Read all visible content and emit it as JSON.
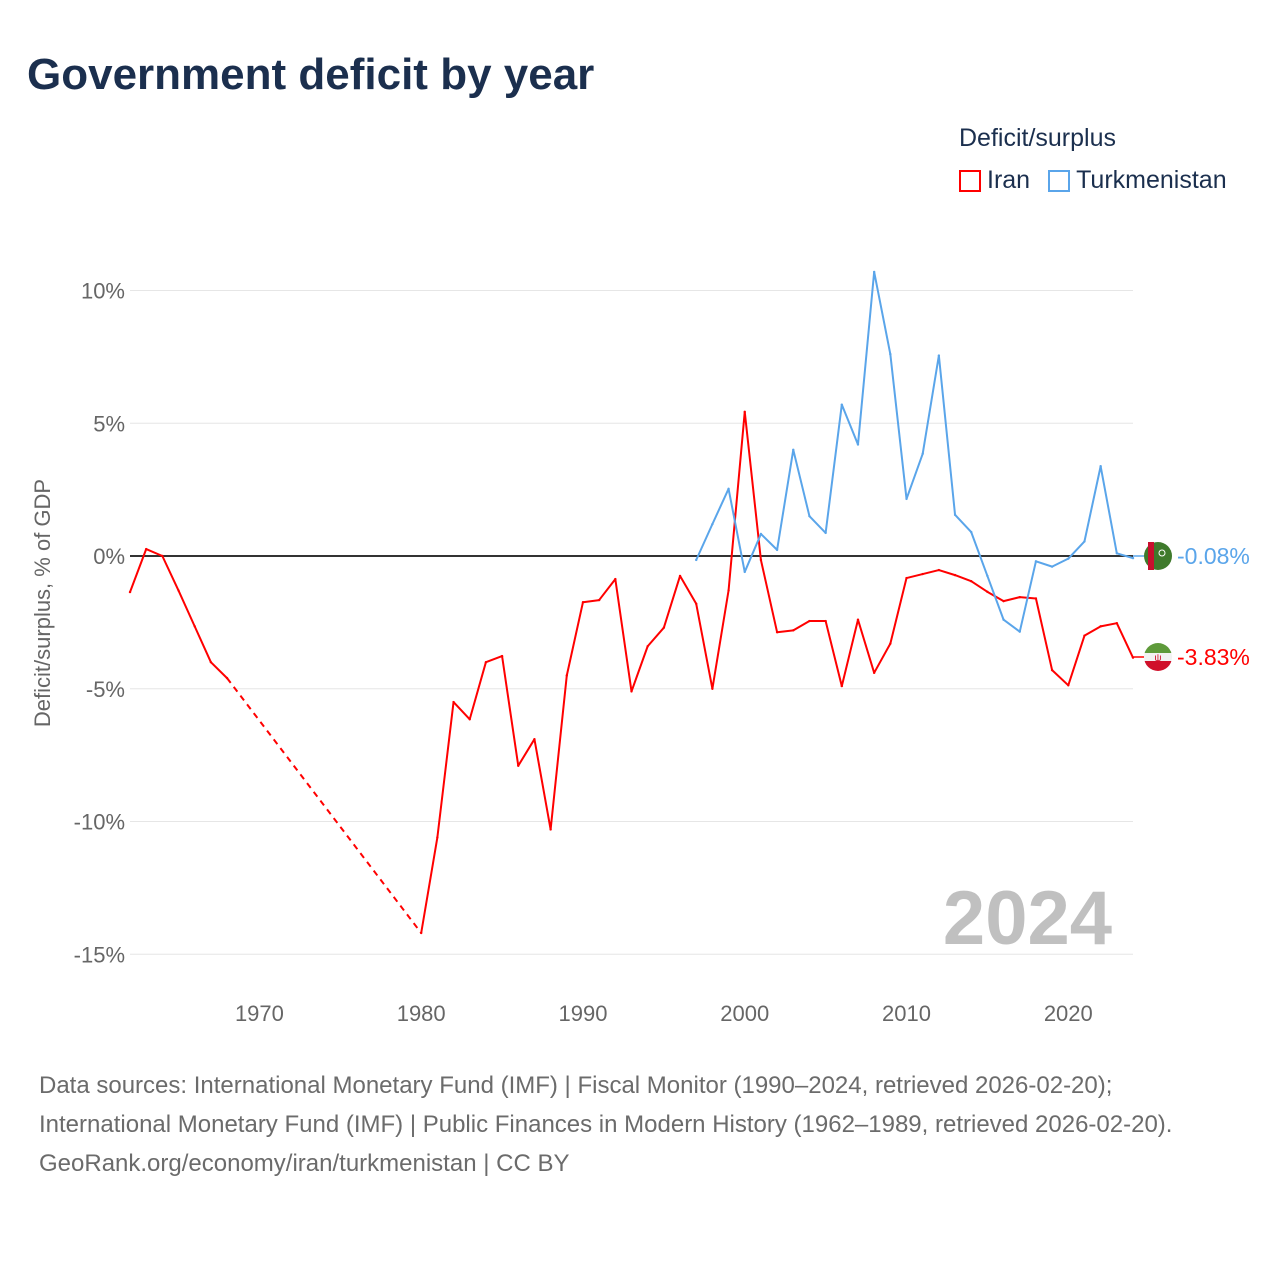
{
  "title": "Government deficit by year",
  "colors": {
    "iran": "#ff0000",
    "turkmenistan": "#5aa5ea",
    "zero": "#333333",
    "grid": "#e6e6e6",
    "year": "#c0c0c0",
    "text": "#1b2f4e"
  },
  "chart_data": {
    "type": "line",
    "title": "Government deficit by year",
    "ylabel": "Deficit/surplus, % of GDP",
    "xlabel": "",
    "legend_title": "Deficit/surplus",
    "legend_position": "top-right",
    "xlim": [
      1962,
      2024
    ],
    "ylim": [
      -16.5,
      11
    ],
    "x_ticks": [
      1970,
      1980,
      1990,
      2000,
      2010,
      2020
    ],
    "x_tick_labels": [
      "1970",
      "1980",
      "1990",
      "2000",
      "2010",
      "2020"
    ],
    "y_ticks": [
      10,
      5,
      0,
      -5,
      -10,
      -15
    ],
    "y_tick_labels": [
      "10%",
      "5%",
      "0%",
      "-5%",
      "-10%",
      "-15%"
    ],
    "year_watermark": "2024",
    "series": [
      {
        "name": "Iran",
        "key": "iran",
        "end_label": "-3.83%",
        "x": [
          1962,
          1963,
          1964,
          1965,
          1966,
          1967,
          1968,
          1980,
          1981,
          1982,
          1983,
          1984,
          1985,
          1986,
          1987,
          1988,
          1989,
          1990,
          1991,
          1992,
          1993,
          1994,
          1995,
          1996,
          1997,
          1998,
          1999,
          2000,
          2001,
          2002,
          2003,
          2004,
          2005,
          2006,
          2007,
          2008,
          2009,
          2010,
          2011,
          2012,
          2013,
          2014,
          2015,
          2016,
          2017,
          2018,
          2019,
          2020,
          2021,
          2022,
          2023,
          2024
        ],
        "values": [
          -1.36,
          0.26,
          0,
          -1.3,
          -2.65,
          -4.0,
          -4.6,
          -14.2,
          -10.6,
          -5.5,
          -6.15,
          -4.0,
          -3.77,
          -7.9,
          -6.9,
          -10.3,
          -4.5,
          -1.74,
          -1.66,
          -0.87,
          -5.1,
          -3.4,
          -2.7,
          -0.75,
          -1.8,
          -5.0,
          -1.3,
          5.43,
          -0.15,
          -2.87,
          -2.8,
          -2.45,
          -2.45,
          -4.9,
          -2.4,
          -4.4,
          -3.3,
          -0.83,
          -0.68,
          -0.53,
          -0.72,
          -0.95,
          -1.35,
          -1.7,
          -1.55,
          -1.6,
          -4.3,
          -4.87,
          -3.0,
          -2.65,
          -2.53,
          -3.83
        ],
        "gaps_after": [
          1968
        ]
      },
      {
        "name": "Turkmenistan",
        "key": "turkmenistan",
        "end_label": "-0.08%",
        "x": [
          1997,
          1998,
          1999,
          2000,
          2001,
          2002,
          2003,
          2004,
          2005,
          2006,
          2007,
          2008,
          2009,
          2010,
          2011,
          2012,
          2013,
          2014,
          2015,
          2016,
          2017,
          2018,
          2019,
          2020,
          2021,
          2022,
          2023,
          2024
        ],
        "values": [
          -0.15,
          1.2,
          2.53,
          -0.6,
          0.83,
          0.23,
          4.0,
          1.5,
          0.87,
          5.7,
          4.2,
          10.7,
          7.6,
          2.15,
          3.85,
          7.55,
          1.55,
          0.9,
          -0.75,
          -2.4,
          -2.85,
          -0.2,
          -0.4,
          -0.1,
          0.55,
          3.38,
          0.1,
          -0.08
        ],
        "gaps_after": []
      }
    ]
  },
  "footer": {
    "sources_line": "Data sources: International Monetary Fund (IMF) | Fiscal Monitor (1990–2024, retrieved 2026-02-20); International Monetary Fund (IMF) | Public Finances in Modern History (1962–1989, retrieved 2026-02-20).",
    "credit": "GeoRank.org/economy/iran/turkmenistan | CC BY"
  }
}
